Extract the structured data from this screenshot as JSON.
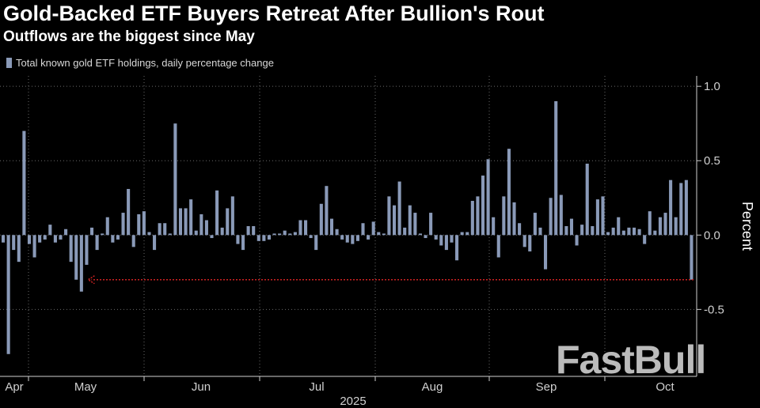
{
  "title": "Gold-Backed ETF Buyers Retreat After Bullion's Rout",
  "subtitle": "Outflows are the biggest since May",
  "watermark": "FastBull",
  "chart_data": {
    "type": "bar",
    "legend": "Total known gold ETF holdings, daily percentage change",
    "ylabel": "Percent",
    "xlabel": "2025",
    "ylim": [
      -0.95,
      1.07
    ],
    "yticks": [
      1.0,
      0.5,
      0.0,
      -0.5
    ],
    "ytick_labels": [
      "1.0",
      "0.5",
      "0.0",
      "-0.5"
    ],
    "months": [
      "Apr",
      "May",
      "Jun",
      "Jul",
      "Aug",
      "Sep",
      "Oct"
    ],
    "bar_color": "#8a9ab8",
    "values": [
      -0.05,
      -0.8,
      -0.1,
      -0.18,
      0.7,
      -0.06,
      -0.15,
      -0.05,
      -0.03,
      0.07,
      -0.05,
      -0.03,
      0.04,
      -0.18,
      -0.3,
      -0.38,
      -0.2,
      0.05,
      -0.1,
      0.01,
      0.12,
      -0.05,
      -0.03,
      0.15,
      0.31,
      -0.08,
      0.14,
      0.16,
      0.02,
      -0.1,
      0.08,
      0.08,
      0.01,
      0.75,
      0.18,
      0.18,
      0.24,
      0.03,
      0.14,
      0.1,
      -0.02,
      0.3,
      0.05,
      0.18,
      0.26,
      -0.06,
      -0.1,
      0.06,
      0.06,
      -0.04,
      -0.04,
      -0.03,
      0.01,
      0.01,
      0.03,
      0.01,
      0.02,
      0.1,
      0.1,
      -0.02,
      -0.1,
      0.21,
      0.33,
      0.11,
      0.04,
      -0.03,
      -0.05,
      -0.06,
      -0.04,
      0.08,
      -0.03,
      0.09,
      0.02,
      0.01,
      0.26,
      0.2,
      0.36,
      0.05,
      0.2,
      0.15,
      0.01,
      -0.02,
      0.15,
      -0.03,
      -0.07,
      -0.1,
      -0.05,
      -0.17,
      0.02,
      0.02,
      0.23,
      0.26,
      0.4,
      0.51,
      0.12,
      -0.15,
      0.26,
      0.58,
      0.22,
      0.08,
      -0.08,
      -0.11,
      0.15,
      0.05,
      -0.23,
      0.25,
      0.9,
      0.27,
      0.06,
      0.11,
      -0.07,
      0.07,
      0.48,
      0.06,
      0.24,
      0.26,
      0.02,
      0.05,
      0.12,
      0.03,
      0.05,
      0.05,
      0.04,
      -0.06,
      0.16,
      0.03,
      0.12,
      0.15,
      0.37,
      0.12,
      0.35,
      0.37,
      -0.3
    ],
    "annotation": {
      "type": "dashed-arrow",
      "from_index": 133,
      "to_index": 16,
      "y": -0.3,
      "color": "#cc2222"
    }
  }
}
